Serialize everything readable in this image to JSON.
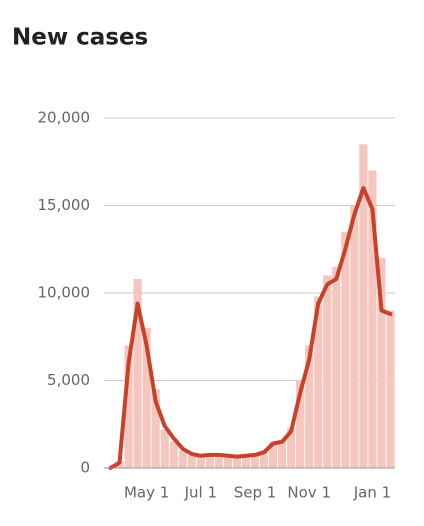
{
  "chart_data": {
    "type": "bar-line",
    "title": "New cases",
    "categories": [
      null,
      null,
      null,
      null,
      "May 1",
      null,
      null,
      null,
      null,
      null,
      "Jul 1",
      null,
      null,
      null,
      null,
      null,
      "Sep 1",
      null,
      null,
      null,
      null,
      null,
      "Nov 1",
      null,
      null,
      null,
      null,
      null,
      null,
      "Jan 1",
      null,
      null
    ],
    "series": [
      {
        "type": "bar",
        "color": "#f5c6be",
        "values": [
          0,
          400,
          7000,
          10800,
          8000,
          4500,
          2200,
          1500,
          1000,
          700,
          700,
          800,
          700,
          700,
          600,
          700,
          800,
          1000,
          1500,
          1600,
          2300,
          5000,
          7000,
          9800,
          11000,
          11500,
          13500,
          15000,
          18500,
          17000,
          12000,
          9000
        ]
      },
      {
        "type": "line",
        "color": "#c8412b",
        "values": [
          0,
          300,
          6000,
          9400,
          7000,
          3800,
          2400,
          1700,
          1100,
          800,
          700,
          750,
          750,
          700,
          650,
          700,
          750,
          900,
          1400,
          1500,
          2100,
          4300,
          6200,
          9400,
          10500,
          10800,
          12500,
          14500,
          16000,
          14800,
          9000,
          8800
        ]
      }
    ],
    "ylim": [
      0,
      20000
    ],
    "yticks": [
      0,
      {
        "value": 5000,
        "label": "5,000"
      },
      {
        "value": 10000,
        "label": "10,000"
      },
      {
        "value": 15000,
        "label": "15,000"
      },
      {
        "value": 20000,
        "label": "20,000"
      }
    ],
    "grid": true
  }
}
